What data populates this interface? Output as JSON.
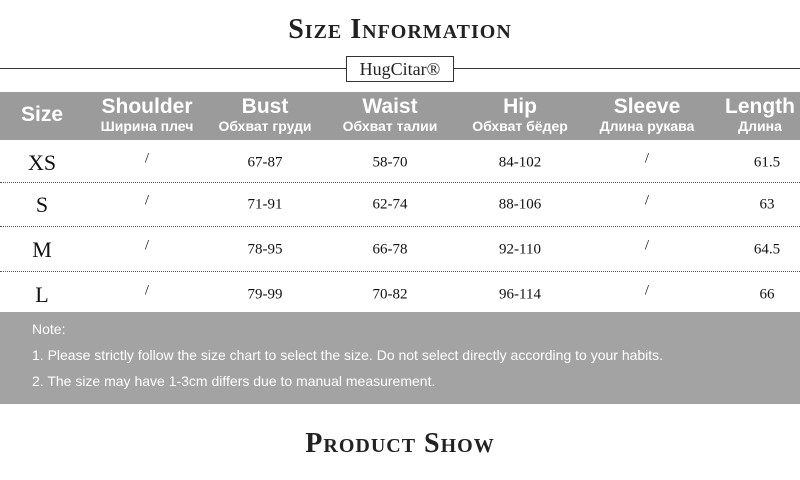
{
  "header": {
    "title": "Size Information",
    "brand": "HugCitar®"
  },
  "table": {
    "columns": [
      {
        "en": "Size"
      },
      {
        "en": "Shoulder",
        "ru": "Ширина плеч"
      },
      {
        "en": "Bust",
        "ru": "Обхват груди"
      },
      {
        "en": "Waist",
        "ru": "Обхват талии"
      },
      {
        "en": "Hip",
        "ru": "Обхват бёдер"
      },
      {
        "en": "Sleeve",
        "ru": "Длина рукава"
      },
      {
        "en": "Length",
        "ru": "Длина"
      }
    ],
    "rows": [
      [
        "XS",
        "/",
        "67-87",
        "58-70",
        "84-102",
        "/",
        "61.5"
      ],
      [
        "S",
        "/",
        "71-91",
        "62-74",
        "88-106",
        "/",
        "63"
      ],
      [
        "M",
        "/",
        "78-95",
        "66-78",
        "92-110",
        "/",
        "64.5"
      ],
      [
        "L",
        "/",
        "79-99",
        "70-82",
        "96-114",
        "/",
        "66"
      ]
    ]
  },
  "notes": {
    "title": "Note:",
    "items": [
      "1. Please strictly follow the size chart to select the size. Do not select directly according to your habits.",
      "2. The size may have 1-3cm differs due to manual measurement."
    ]
  },
  "footer": {
    "title": "Product Show"
  }
}
